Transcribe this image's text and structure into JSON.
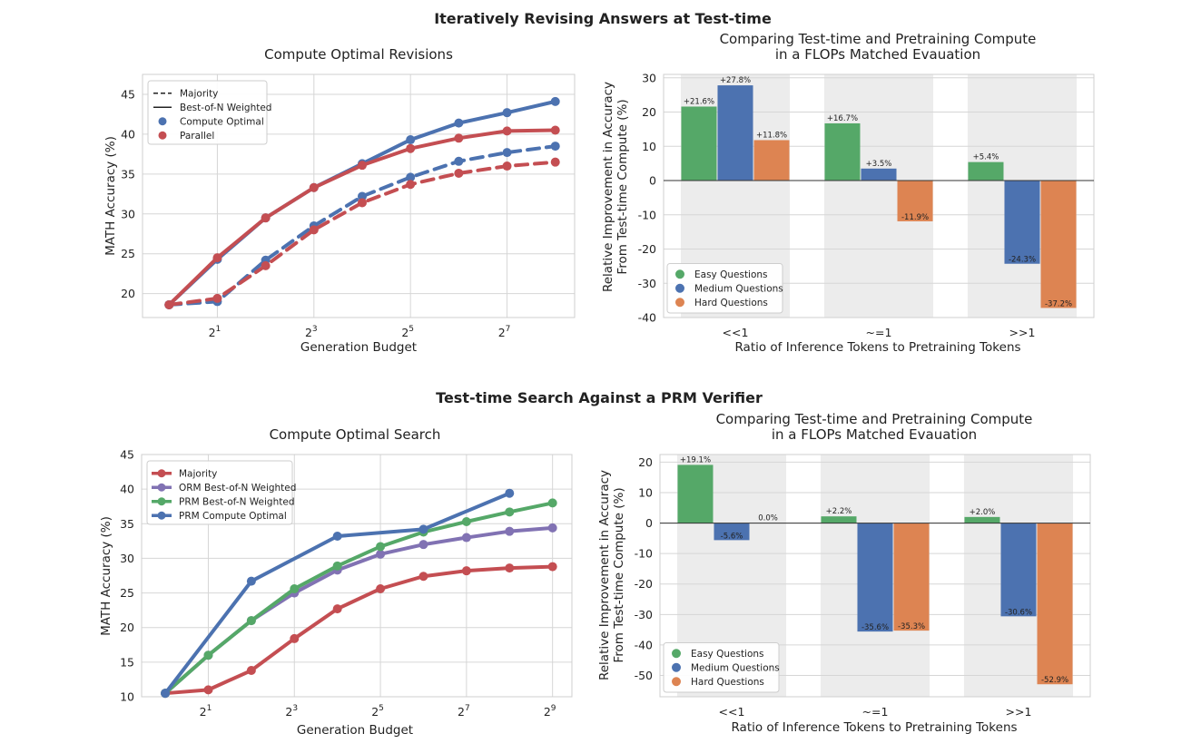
{
  "figure": {
    "section_top_title": "Iteratively Revising Answers at Test-time",
    "section_bottom_title": "Test-time Search Against a PRM Verifier"
  },
  "chart_data": [
    {
      "id": "revisions",
      "type": "line",
      "title": "Compute Optimal Revisions",
      "xlabel": "Generation Budget",
      "ylabel": "MATH Accuracy (%)",
      "x_scale": "log2",
      "x": [
        1,
        2,
        4,
        8,
        16,
        32,
        64,
        128,
        256
      ],
      "xlim_exp": [
        -0.55,
        8.4
      ],
      "ylim": [
        17,
        47.5
      ],
      "x_ticks": [
        {
          "base": "2",
          "exp": "1",
          "value": 2
        },
        {
          "base": "2",
          "exp": "3",
          "value": 8
        },
        {
          "base": "2",
          "exp": "5",
          "value": 32
        },
        {
          "base": "2",
          "exp": "7",
          "value": 128
        }
      ],
      "y_ticks": [
        20,
        25,
        30,
        35,
        40,
        45
      ],
      "legend": {
        "position": "top-left",
        "entries": [
          {
            "label": "Majority",
            "kind": "dashed-line",
            "color": "#222222"
          },
          {
            "label": "Best-of-N Weighted",
            "kind": "solid-line",
            "color": "#222222"
          },
          {
            "label": "Compute Optimal",
            "kind": "dot",
            "color": "#4c72b0"
          },
          {
            "label": "Parallel",
            "kind": "dot",
            "color": "#c44e52"
          }
        ]
      },
      "series": [
        {
          "name": "Compute Optimal Best-of-N Weighted",
          "color": "#4c72b0",
          "dash": false,
          "values": [
            18.6,
            24.3,
            29.5,
            33.3,
            36.3,
            39.3,
            41.4,
            42.7,
            44.1
          ]
        },
        {
          "name": "Parallel Best-of-N Weighted",
          "color": "#c44e52",
          "dash": false,
          "values": [
            18.6,
            24.5,
            29.5,
            33.3,
            36.1,
            38.2,
            39.5,
            40.4,
            40.5
          ]
        },
        {
          "name": "Compute Optimal Majority",
          "color": "#4c72b0",
          "dash": true,
          "values": [
            18.6,
            19.0,
            24.2,
            28.5,
            32.2,
            34.6,
            36.6,
            37.7,
            38.5
          ]
        },
        {
          "name": "Parallel Majority",
          "color": "#c44e52",
          "dash": true,
          "values": [
            18.6,
            19.4,
            23.5,
            28.0,
            31.4,
            33.7,
            35.1,
            36.0,
            36.5
          ]
        }
      ]
    },
    {
      "id": "revisions_flops",
      "type": "bar",
      "title": "Comparing Test-time and Pretraining Compute",
      "subtitle": "in a FLOPs Matched Evauation",
      "xlabel": "Ratio of Inference Tokens to Pretraining Tokens",
      "ylabel": "Relative Improvement in Accuracy",
      "ylabel2": "From Test-time Compute (%)",
      "categories": [
        "<<1",
        "~=1",
        ">>1"
      ],
      "ylim": [
        -40,
        31
      ],
      "y_ticks": [
        -40,
        -30,
        -20,
        -10,
        0,
        10,
        20,
        30
      ],
      "legend": {
        "position": "bottom-left"
      },
      "series": [
        {
          "name": "Easy Questions",
          "color": "#55a868",
          "values": [
            21.6,
            16.7,
            5.4
          ],
          "labels": [
            "+21.6%",
            "+16.7%",
            "+5.4%"
          ]
        },
        {
          "name": "Medium Questions",
          "color": "#4c72b0",
          "values": [
            27.8,
            3.5,
            -24.3
          ],
          "labels": [
            "+27.8%",
            "+3.5%",
            "-24.3%"
          ]
        },
        {
          "name": "Hard Questions",
          "color": "#dd8452",
          "values": [
            11.8,
            -11.9,
            -37.2
          ],
          "labels": [
            "+11.8%",
            "-11.9%",
            "-37.2%"
          ]
        }
      ]
    },
    {
      "id": "search",
      "type": "line",
      "title": "Compute Optimal Search",
      "xlabel": "Generation Budget",
      "ylabel": "MATH Accuracy (%)",
      "x_scale": "log2",
      "x": [
        1,
        2,
        4,
        8,
        16,
        32,
        64,
        128,
        256,
        512
      ],
      "xlim_exp": [
        -0.55,
        9.45
      ],
      "ylim": [
        10,
        45
      ],
      "x_ticks": [
        {
          "base": "2",
          "exp": "1",
          "value": 2
        },
        {
          "base": "2",
          "exp": "3",
          "value": 8
        },
        {
          "base": "2",
          "exp": "5",
          "value": 32
        },
        {
          "base": "2",
          "exp": "7",
          "value": 128
        },
        {
          "base": "2",
          "exp": "9",
          "value": 512
        }
      ],
      "y_ticks": [
        10,
        15,
        20,
        25,
        30,
        35,
        40,
        45
      ],
      "legend": {
        "position": "top-left"
      },
      "series": [
        {
          "name": "Majority",
          "color": "#c44e52",
          "dash": false,
          "values": [
            10.5,
            11.0,
            13.8,
            18.4,
            22.7,
            25.6,
            27.4,
            28.2,
            28.6,
            28.8
          ]
        },
        {
          "name": "ORM Best-of-N Weighted",
          "color": "#8172b3",
          "dash": false,
          "values": [
            10.5,
            16.0,
            21.0,
            25.0,
            28.3,
            30.6,
            32.0,
            33.0,
            33.9,
            34.4
          ]
        },
        {
          "name": "PRM Best-of-N Weighted",
          "color": "#55a868",
          "dash": false,
          "values": [
            10.5,
            16.0,
            21.0,
            25.6,
            28.9,
            31.7,
            33.8,
            35.3,
            36.7,
            38.0
          ]
        },
        {
          "name": "PRM Compute Optimal",
          "color": "#4c72b0",
          "dash": false,
          "values": [
            10.5,
            null,
            26.7,
            null,
            33.2,
            null,
            34.2,
            null,
            39.4,
            null
          ]
        }
      ]
    },
    {
      "id": "search_flops",
      "type": "bar",
      "title": "Comparing Test-time and Pretraining Compute",
      "subtitle": "in a FLOPs Matched Evauation",
      "xlabel": "Ratio of Inference Tokens to Pretraining Tokens",
      "ylabel": "Relative Improvement in Accuracy",
      "ylabel2": "From Test-time Compute (%)",
      "categories": [
        "<<1",
        "~=1",
        ">>1"
      ],
      "ylim": [
        -57,
        22.5
      ],
      "y_ticks": [
        -50,
        -40,
        -30,
        -20,
        -10,
        0,
        10,
        20
      ],
      "legend": {
        "position": "bottom-left"
      },
      "series": [
        {
          "name": "Easy Questions",
          "color": "#55a868",
          "values": [
            19.1,
            2.2,
            2.0
          ],
          "labels": [
            "+19.1%",
            "+2.2%",
            "+2.0%"
          ]
        },
        {
          "name": "Medium Questions",
          "color": "#4c72b0",
          "values": [
            -5.6,
            -35.6,
            -30.6
          ],
          "labels": [
            "-5.6%",
            "-35.6%",
            "-30.6%"
          ]
        },
        {
          "name": "Hard Questions",
          "color": "#dd8452",
          "values": [
            0.0,
            -35.3,
            -52.9
          ],
          "labels": [
            "0.0%",
            "-35.3%",
            "-52.9%"
          ]
        }
      ]
    }
  ]
}
